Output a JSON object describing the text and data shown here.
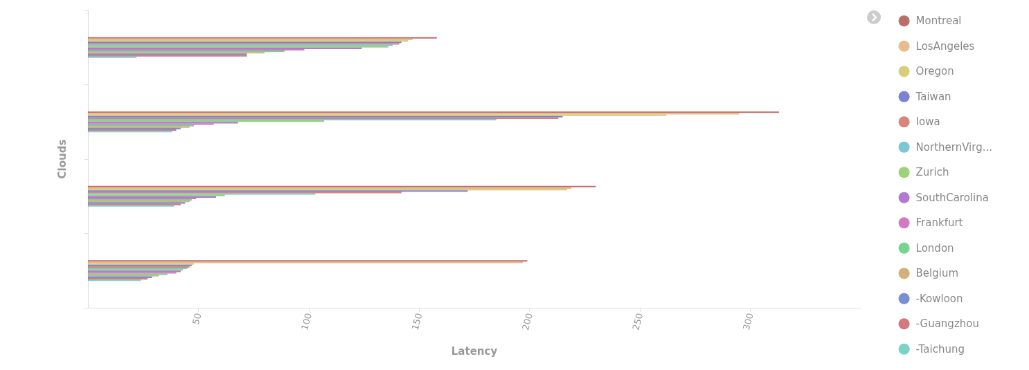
{
  "chart_data": {
    "type": "bar",
    "orientation": "horizontal",
    "xlabel": "Latency",
    "ylabel": "Clouds",
    "categories": [
      null,
      null,
      null,
      null
    ],
    "xlim": [
      0,
      350
    ],
    "xticks": [
      50,
      100,
      150,
      200,
      250,
      300
    ],
    "grid": false,
    "legend": "right",
    "series": [
      {
        "name": "Montreal",
        "color": "#a0302c",
        "values": [
          158,
          313,
          230,
          199
        ]
      },
      {
        "name": "LosAngeles",
        "color": "#e0a060",
        "values": [
          147,
          295,
          219,
          197
        ]
      },
      {
        "name": "Oregon",
        "color": "#c8b840",
        "values": [
          145,
          262,
          217,
          48
        ]
      },
      {
        "name": "Taiwan",
        "color": "#4050c0",
        "values": [
          142,
          215,
          172,
          47
        ]
      },
      {
        "name": "Iowa",
        "color": "#c85040",
        "values": [
          141,
          213,
          142,
          46
        ]
      },
      {
        "name": "NorthernVirg...",
        "color": "#40b0c0",
        "values": [
          138,
          185,
          103,
          45
        ]
      },
      {
        "name": "Zurich",
        "color": "#70c040",
        "values": [
          136,
          107,
          62,
          43
        ]
      },
      {
        "name": "SouthCarolina",
        "color": "#9040c0",
        "values": [
          124,
          68,
          58,
          42
        ]
      },
      {
        "name": "Frankfurt",
        "color": "#c040a8",
        "values": [
          98,
          57,
          49,
          40
        ]
      },
      {
        "name": "London",
        "color": "#40c060",
        "values": [
          89,
          48,
          47,
          36
        ]
      },
      {
        "name": "Belgium",
        "color": "#c09040",
        "values": [
          80,
          46,
          46,
          32
        ]
      },
      {
        "name": "-Kowloon",
        "color": "#4060c0",
        "values": [
          72,
          42,
          44,
          29
        ]
      },
      {
        "name": "-Guangzhou",
        "color": "#c04048",
        "values": [
          72,
          40,
          42,
          27
        ]
      },
      {
        "name": "-Taichung",
        "color": "#40c0b0",
        "values": [
          22,
          38,
          39,
          24
        ]
      }
    ]
  }
}
